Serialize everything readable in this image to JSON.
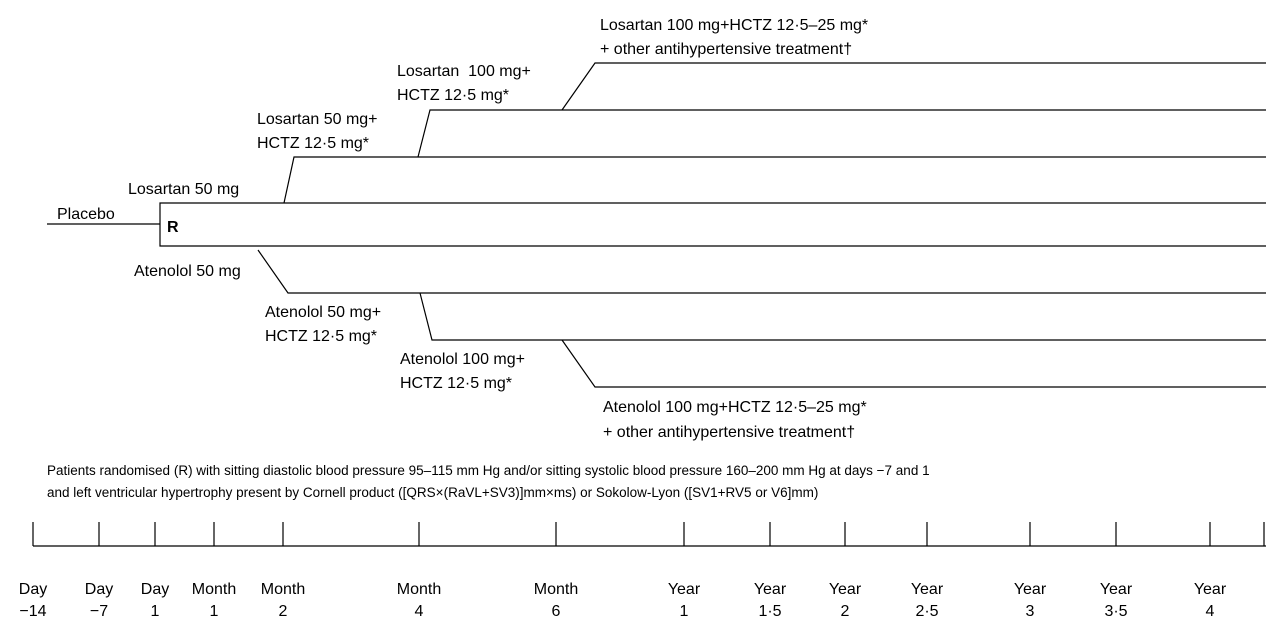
{
  "placebo": "Placebo",
  "randomisation": "R",
  "losartan_steps": [
    [
      "Losartan 50 mg"
    ],
    [
      "Losartan 50 mg+",
      "HCTZ 12·5 mg*"
    ],
    [
      "Losartan  100 mg+",
      "HCTZ 12·5 mg*"
    ],
    [
      "Losartan 100 mg+HCTZ 12·5–25 mg*",
      "+ other antihypertensive treatment†"
    ]
  ],
  "atenolol_steps": [
    [
      "Atenolol 50 mg"
    ],
    [
      "Atenolol 50 mg+",
      "HCTZ 12·5 mg*"
    ],
    [
      "Atenolol 100 mg+",
      "HCTZ 12·5 mg*"
    ],
    [
      "Atenolol 100 mg+HCTZ 12·5–25 mg*",
      "+ other antihypertensive treatment†"
    ]
  ],
  "footnote": [
    "Patients randomised (R) with sitting diastolic blood pressure 95–115 mm Hg and/or sitting systolic blood pressure 160–200 mm Hg at days −7 and 1",
    "and left ventricular hypertrophy present by Cornell product ([QRS×(RaVL+SV3)]mm×ms) or Sokolow-Lyon ([SV1+RV5 or V6]mm)"
  ],
  "timeline": [
    {
      "unit": "Day",
      "value": "−14"
    },
    {
      "unit": "Day",
      "value": "−7"
    },
    {
      "unit": "Day",
      "value": "1"
    },
    {
      "unit": "Month",
      "value": "1"
    },
    {
      "unit": "Month",
      "value": "2"
    },
    {
      "unit": "Month",
      "value": "4"
    },
    {
      "unit": "Month",
      "value": "6"
    },
    {
      "unit": "Year",
      "value": "1"
    },
    {
      "unit": "Year",
      "value": "1·5"
    },
    {
      "unit": "Year",
      "value": "2"
    },
    {
      "unit": "Year",
      "value": "2·5"
    },
    {
      "unit": "Year",
      "value": "3"
    },
    {
      "unit": "Year",
      "value": "3·5"
    },
    {
      "unit": "Year",
      "value": "4"
    }
  ]
}
